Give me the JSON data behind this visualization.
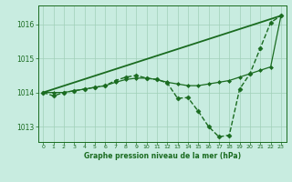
{
  "background_color": "#c8ece0",
  "grid_color": "#a0d0b8",
  "line_color": "#1a6b20",
  "text_color": "#1a6b20",
  "xlabel": "Graphe pression niveau de la mer (hPa)",
  "xlim": [
    -0.5,
    23.5
  ],
  "ylim": [
    1012.55,
    1016.55
  ],
  "yticks": [
    1013,
    1014,
    1015,
    1016
  ],
  "xticks": [
    0,
    1,
    2,
    3,
    4,
    5,
    6,
    7,
    8,
    9,
    10,
    11,
    12,
    13,
    14,
    15,
    16,
    17,
    18,
    19,
    20,
    21,
    22,
    23
  ],
  "series": [
    {
      "x": [
        0,
        1,
        2,
        3,
        4,
        5,
        6,
        7,
        8,
        9,
        10,
        11,
        12,
        13,
        14,
        15,
        16,
        17,
        18,
        19,
        20,
        21,
        22,
        23
      ],
      "y": [
        1014.0,
        1013.9,
        1014.0,
        1014.05,
        1014.1,
        1014.15,
        1014.2,
        1014.35,
        1014.45,
        1014.5,
        1014.42,
        1014.38,
        1014.28,
        1013.83,
        1013.85,
        1013.45,
        1013.0,
        1012.7,
        1012.75,
        1014.1,
        1014.55,
        1015.3,
        1016.05,
        1016.25
      ],
      "marker": "D",
      "markersize": 2.5,
      "linewidth": 1.0,
      "linestyle": "--"
    },
    {
      "x": [
        0,
        1,
        2,
        3,
        4,
        5,
        6,
        7,
        8,
        9,
        10,
        11,
        12,
        13,
        14,
        15,
        16,
        17,
        18,
        19,
        20,
        21,
        22,
        23
      ],
      "y": [
        1014.0,
        1014.0,
        1014.0,
        1014.05,
        1014.1,
        1014.15,
        1014.2,
        1014.3,
        1014.38,
        1014.42,
        1014.42,
        1014.38,
        1014.3,
        1014.25,
        1014.2,
        1014.2,
        1014.25,
        1014.3,
        1014.35,
        1014.45,
        1014.55,
        1014.65,
        1014.75,
        1016.25
      ],
      "marker": "D",
      "markersize": 2.0,
      "linewidth": 0.9,
      "linestyle": "-"
    },
    {
      "x": [
        0,
        23
      ],
      "y": [
        1014.0,
        1016.25
      ],
      "marker": null,
      "markersize": 0,
      "linewidth": 1.3,
      "linestyle": "-"
    }
  ],
  "figwidth": 3.2,
  "figheight": 2.0,
  "dpi": 100
}
